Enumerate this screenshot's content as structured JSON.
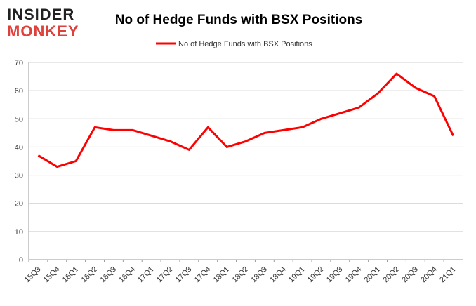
{
  "logo": [
    "INSIDER",
    "MONKEY"
  ],
  "chart_data": {
    "type": "line",
    "title": "No of Hedge Funds with BSX Positions",
    "categories": [
      "15Q3",
      "15Q4",
      "16Q1",
      "16Q2",
      "16Q3",
      "16Q4",
      "17Q1",
      "17Q2",
      "17Q3",
      "17Q4",
      "18Q1",
      "18Q2",
      "18Q3",
      "18Q4",
      "19Q1",
      "19Q2",
      "19Q3",
      "19Q4",
      "20Q1",
      "20Q2",
      "20Q3",
      "20Q4",
      "21Q1"
    ],
    "series": [
      {
        "name": "No of Hedge Funds with BSX Positions",
        "color": "#ff0000",
        "values": [
          37,
          33,
          35,
          47,
          46,
          46,
          44,
          42,
          39,
          47,
          40,
          42,
          45,
          46,
          47,
          50,
          52,
          54,
          59,
          66,
          61,
          58,
          44
        ]
      }
    ],
    "ylim": [
      0,
      70
    ],
    "yticks": [
      0,
      10,
      20,
      30,
      40,
      50,
      60,
      70
    ],
    "grid": true,
    "legend": "top"
  }
}
